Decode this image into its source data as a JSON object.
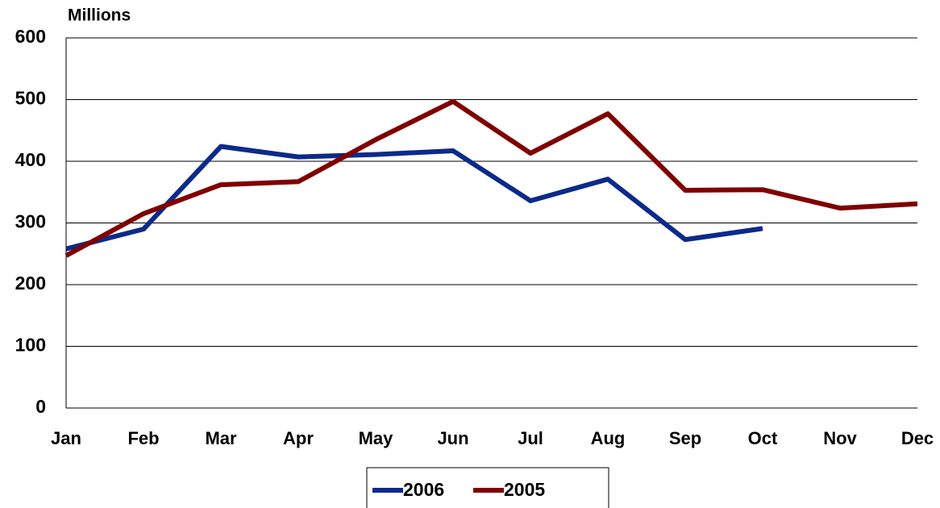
{
  "chart_data": {
    "type": "line",
    "y_label": "Millions",
    "categories": [
      "Jan",
      "Feb",
      "Mar",
      "Apr",
      "May",
      "Jun",
      "Jul",
      "Aug",
      "Sep",
      "Oct",
      "Nov",
      "Dec"
    ],
    "series": [
      {
        "name": "2006",
        "color": "#0b2a8a",
        "values": [
          258,
          290,
          424,
          407,
          411,
          417,
          336,
          371,
          273,
          291,
          null,
          null
        ]
      },
      {
        "name": "2005",
        "color": "#800000",
        "values": [
          247,
          315,
          362,
          367,
          435,
          497,
          413,
          477,
          353,
          354,
          324,
          331
        ]
      }
    ],
    "ylim": [
      0,
      600
    ],
    "yticks": [
      0,
      100,
      200,
      300,
      400,
      500,
      600
    ],
    "grid": true
  }
}
